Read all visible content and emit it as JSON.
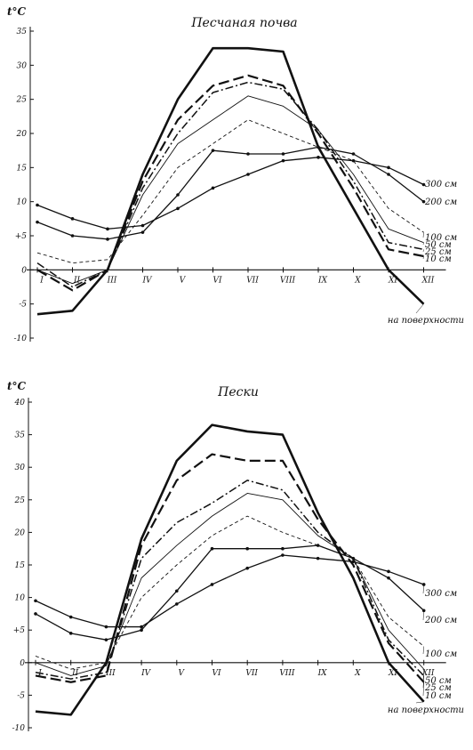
{
  "chart_data": [
    {
      "type": "line",
      "title": "Песчаная почва",
      "ylabel": "t°C",
      "xlabel": "",
      "ylim": [
        -10,
        35
      ],
      "yticks": [
        "35",
        "30",
        "25",
        "20",
        "15",
        "10",
        "+5",
        "0",
        "-5",
        "-10"
      ],
      "categories": [
        "I",
        "II",
        "III",
        "IV",
        "V",
        "VI",
        "VII",
        "VIII",
        "IX",
        "X",
        "XI",
        "XII"
      ],
      "grid": false,
      "legend": "inline-right",
      "series": [
        {
          "name": "на поверхности",
          "style": "solid-bold",
          "values": [
            -6.5,
            -6,
            0,
            14,
            25,
            32.5,
            32.5,
            32,
            18,
            9,
            0,
            -5
          ]
        },
        {
          "name": "10 см",
          "style": "dash-long",
          "values": [
            0,
            -3,
            0,
            13,
            22,
            27,
            28.5,
            27,
            20,
            12,
            3,
            2
          ]
        },
        {
          "name": "25 см",
          "style": "dash-dot",
          "values": [
            1,
            -2.5,
            0,
            12,
            20,
            26,
            27.5,
            26.5,
            20.5,
            13,
            4,
            3
          ]
        },
        {
          "name": "50 см",
          "style": "solid-thin",
          "values": [
            0,
            -2,
            0,
            11,
            18.5,
            22,
            25.5,
            24,
            20.5,
            14,
            6,
            4
          ]
        },
        {
          "name": "100 см",
          "style": "dash-short",
          "values": [
            2.5,
            1,
            1.5,
            8,
            15,
            18.5,
            22,
            20,
            18,
            16,
            9,
            5.5
          ]
        },
        {
          "name": "200 см",
          "style": "solid-dots",
          "values": [
            7,
            5,
            4.5,
            5.5,
            11,
            17.5,
            17,
            17,
            18,
            17,
            14,
            10
          ]
        },
        {
          "name": "300 см",
          "style": "solid-dots",
          "values": [
            9.5,
            7.5,
            6,
            6.5,
            9,
            12,
            14,
            16,
            16.5,
            16,
            15,
            12.5
          ]
        }
      ]
    },
    {
      "type": "line",
      "title": "Пески",
      "ylabel": "t°C",
      "xlabel": "",
      "ylim": [
        -10,
        40
      ],
      "yticks": [
        "40",
        "35",
        "30",
        "25",
        "20",
        "15",
        "10",
        "+5",
        "0",
        "-5",
        "-10"
      ],
      "categories": [
        "I",
        "II",
        "III",
        "IV",
        "V",
        "VI",
        "VII",
        "VIII",
        "IX",
        "X",
        "XI",
        "XII"
      ],
      "grid": false,
      "legend": "inline-right",
      "series": [
        {
          "name": "на поверхности",
          "style": "solid-bold",
          "values": [
            -7.5,
            -8,
            0,
            19,
            31,
            36.5,
            35.5,
            35,
            23,
            13,
            0,
            -6
          ]
        },
        {
          "name": "10 см",
          "style": "dash-long",
          "values": [
            -2,
            -3,
            -2,
            18,
            28,
            32,
            31,
            31,
            22,
            15,
            3,
            -3
          ]
        },
        {
          "name": "25 см",
          "style": "dash-dot",
          "values": [
            -1.5,
            -2.5,
            -1.5,
            16,
            21.5,
            24.5,
            28,
            26.5,
            20,
            16,
            3.5,
            -2
          ]
        },
        {
          "name": "50 см",
          "style": "solid-thin",
          "values": [
            0,
            -2,
            -0.5,
            13,
            18,
            22.5,
            26,
            25,
            19.5,
            16,
            5,
            -1
          ]
        },
        {
          "name": "100 см",
          "style": "dash-short",
          "values": [
            1,
            -1,
            0,
            10,
            15,
            19.5,
            22.5,
            20,
            18,
            16,
            7,
            2.5
          ]
        },
        {
          "name": "200 см",
          "style": "solid-dots",
          "values": [
            7.5,
            4.5,
            3.5,
            5,
            11,
            17.5,
            17.5,
            17.5,
            18,
            16,
            13,
            8
          ]
        },
        {
          "name": "300 см",
          "style": "solid-dots",
          "values": [
            9.5,
            7,
            5.5,
            5.5,
            9,
            12,
            14.5,
            16.5,
            16,
            15.5,
            14,
            12
          ]
        }
      ]
    }
  ]
}
